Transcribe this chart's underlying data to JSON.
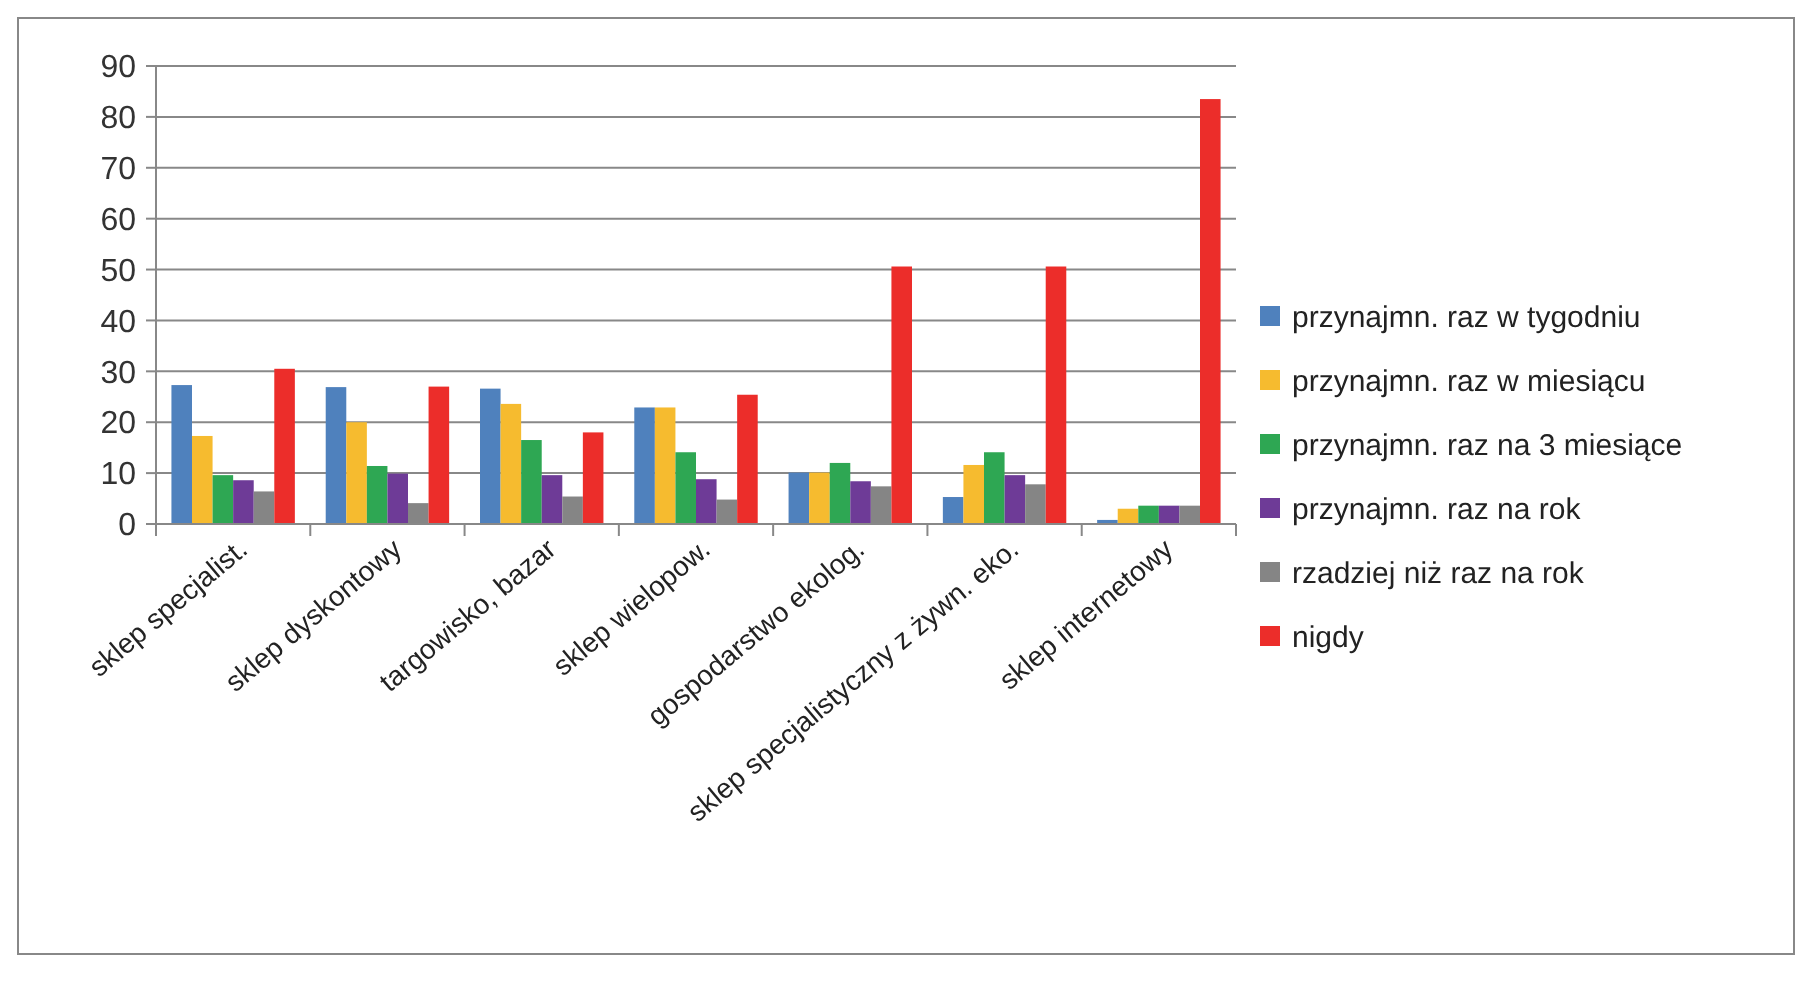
{
  "chart_data": {
    "type": "bar",
    "categories": [
      "sklep specjalist.",
      "sklep dyskontowy",
      "targowisko, bazar",
      "sklep wielopow.",
      "gospodarstwo ekolog.",
      "sklep specjalistyczny z żywn. eko.",
      "sklep internetowy"
    ],
    "series": [
      {
        "name": "przynajmn. raz w tygodniu",
        "color": "#4f81bd",
        "values": [
          27.3,
          26.9,
          26.6,
          22.9,
          10.1,
          5.3,
          0.8
        ]
      },
      {
        "name": "przynajmn. raz w miesiącu",
        "color": "#f6bb2f",
        "values": [
          17.3,
          20,
          23.6,
          22.9,
          10.1,
          11.6,
          3
        ]
      },
      {
        "name": "przynajmn. raz na 3 miesiące",
        "color": "#2ea753",
        "values": [
          9.6,
          11.4,
          16.5,
          14.1,
          12,
          14.1,
          3.6
        ]
      },
      {
        "name": "przynajmn. raz na rok",
        "color": "#6e3b97",
        "values": [
          8.6,
          9.9,
          9.6,
          8.8,
          8.4,
          9.6,
          3.6
        ]
      },
      {
        "name": "rzadziej niż raz na rok",
        "color": "#858585",
        "values": [
          6.4,
          4.1,
          5.4,
          4.8,
          7.4,
          7.8,
          3.6
        ]
      },
      {
        "name": "nigdy",
        "color": "#ec2d2a",
        "values": [
          30.5,
          27,
          18,
          25.4,
          50.6,
          50.6,
          83.5
        ]
      }
    ],
    "ylim": [
      0,
      90
    ],
    "yticks": [
      0,
      10,
      20,
      30,
      40,
      50,
      60,
      70,
      80,
      90
    ],
    "grid": "y",
    "legend": "right"
  }
}
